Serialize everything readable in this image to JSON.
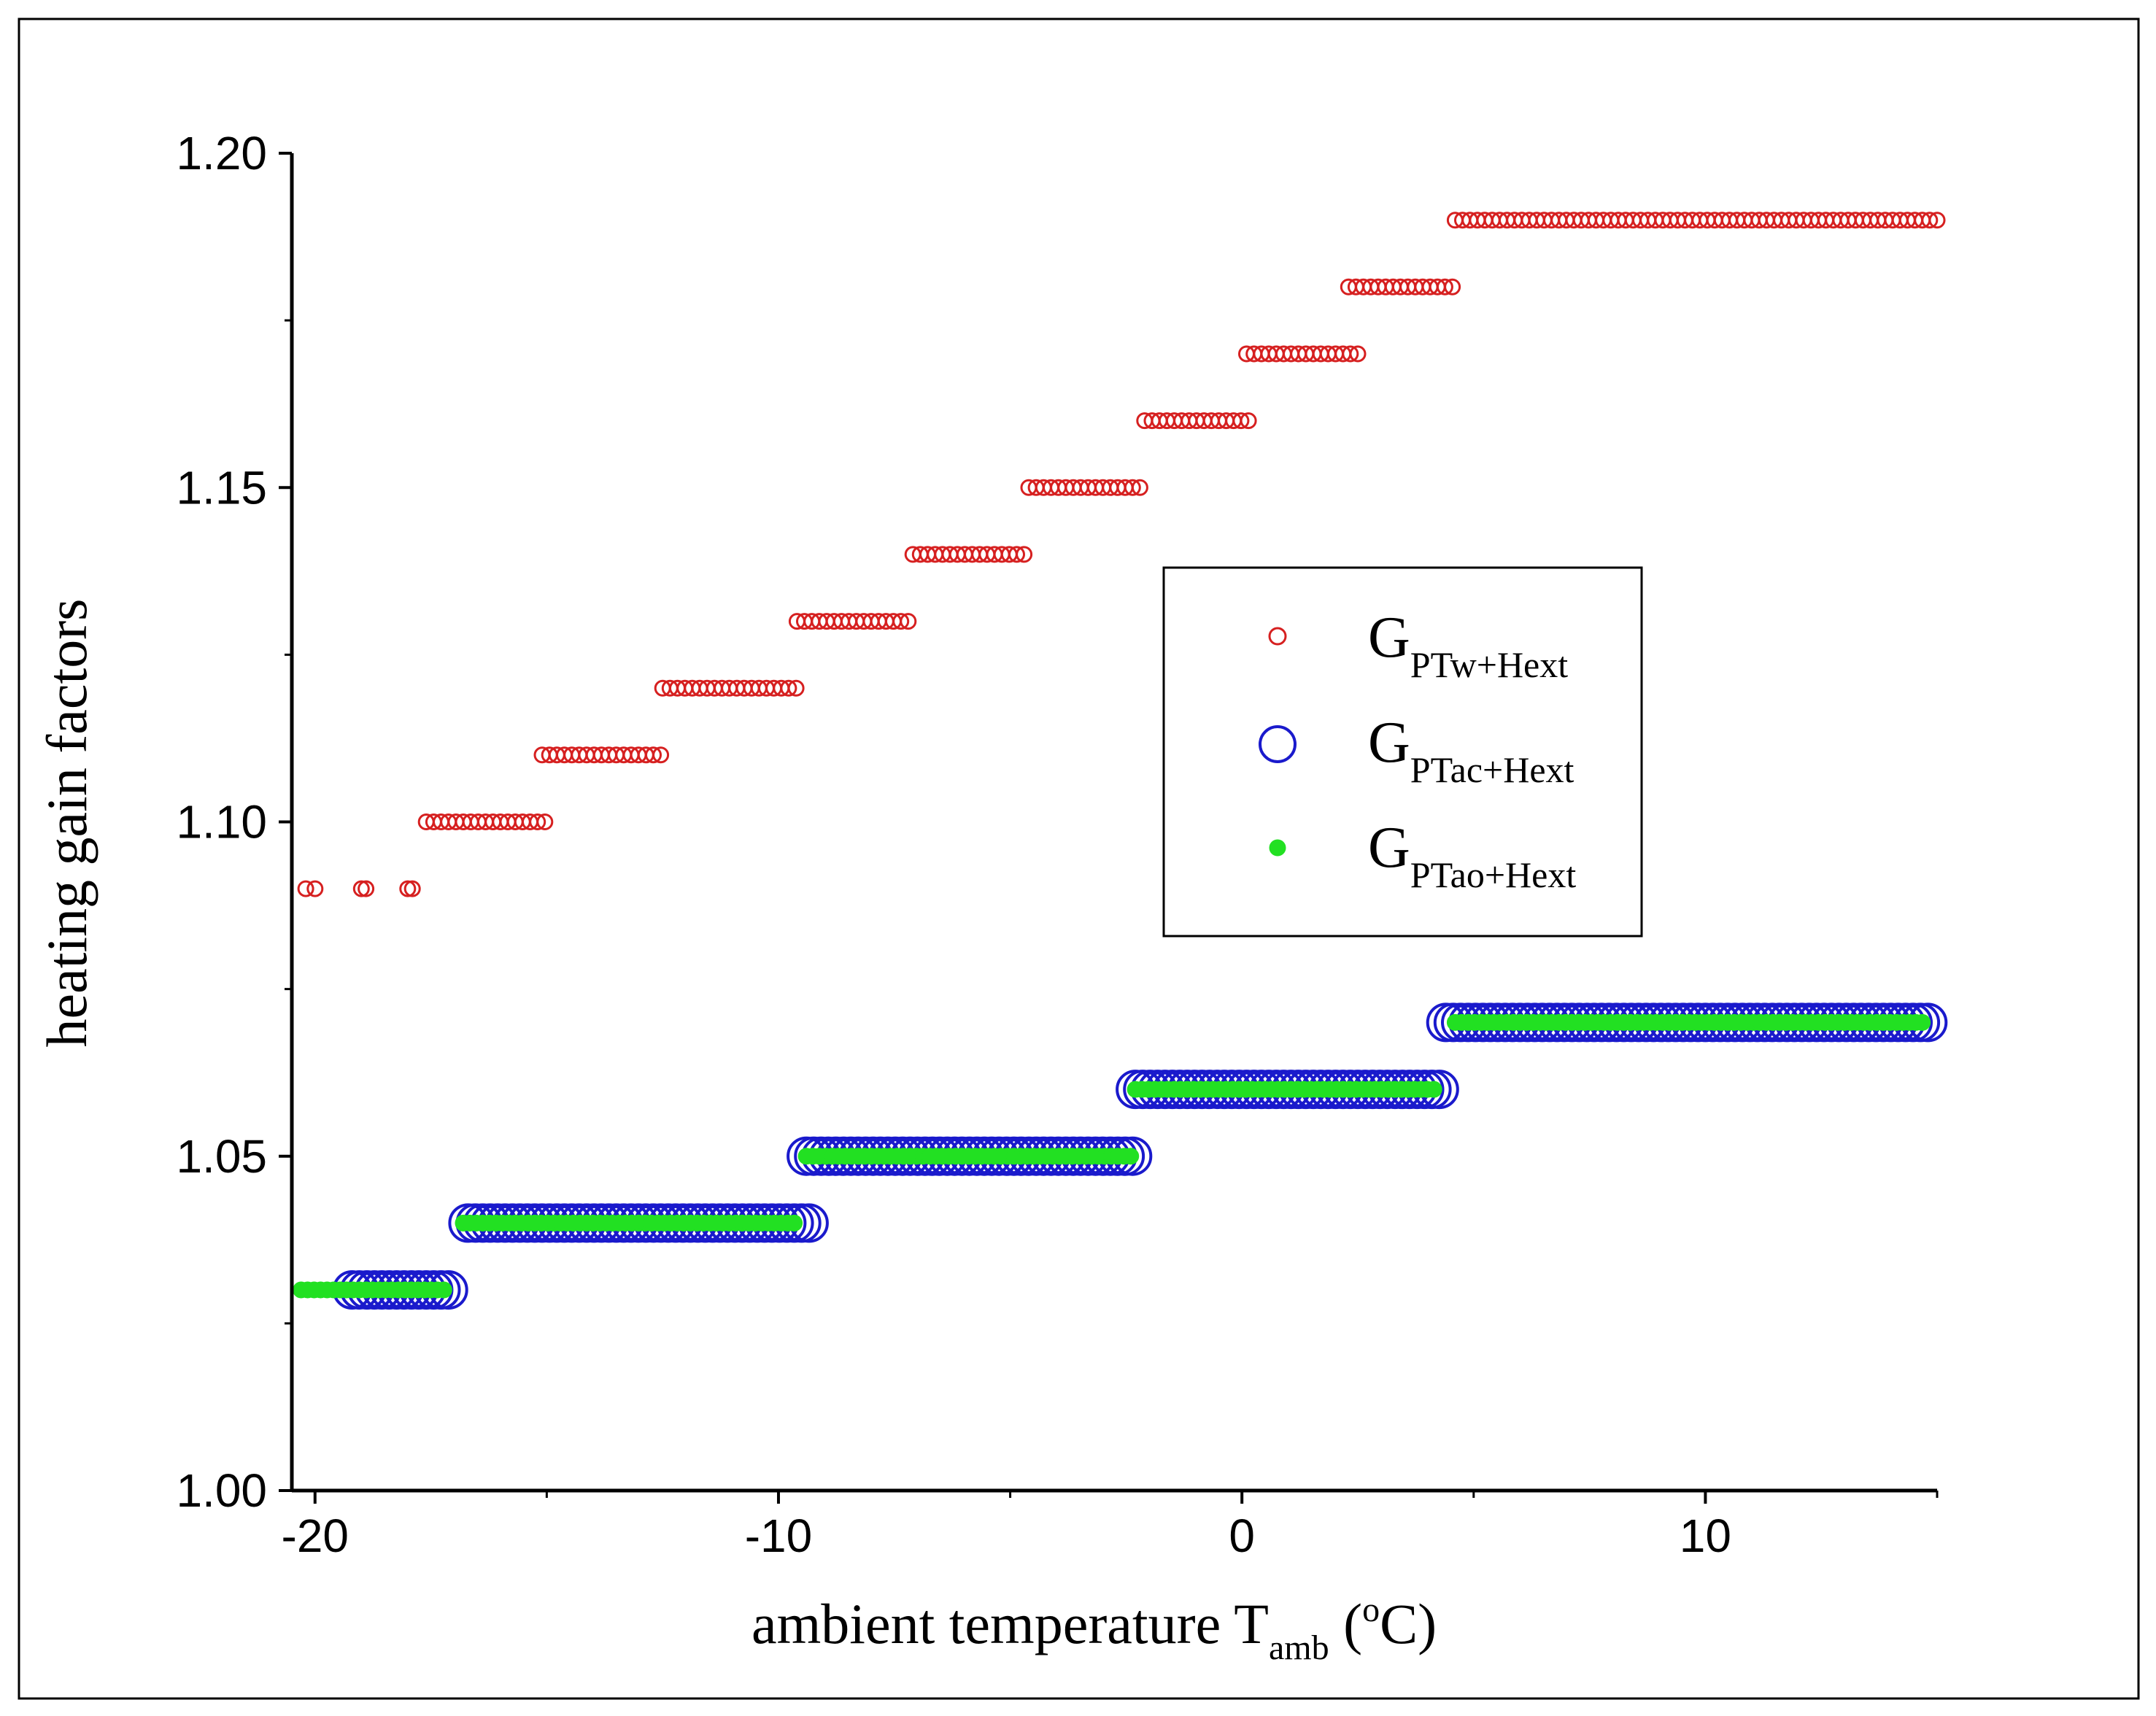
{
  "chart_data": {
    "type": "scatter",
    "xlabel": {
      "main": "ambient temperature T",
      "sub": "amb",
      "unit_open": " (",
      "unit_sup": "o",
      "unit_close": "C)"
    },
    "ylabel": "heating gain factors",
    "xlim": [
      -20.5,
      15
    ],
    "ylim": [
      1.0,
      1.2
    ],
    "x_ticks": [
      -20,
      -10,
      0,
      10
    ],
    "x_tick_labels": [
      "-20",
      "-10",
      "0",
      "10"
    ],
    "y_ticks": [
      1.0,
      1.05,
      1.1,
      1.15,
      1.2
    ],
    "y_tick_labels": [
      "1.00",
      "1.05",
      "1.10",
      "1.15",
      "1.20"
    ],
    "legend_position": "center-right",
    "series": [
      {
        "name": "G",
        "name_sub": "PTw+Hext",
        "marker": "open-circle-small",
        "color": "#d62020",
        "segments": [
          {
            "y": 1.09,
            "x_points": [
              -20.2,
              -20.0,
              -19.0,
              -18.9,
              -18.0,
              -17.9
            ]
          },
          {
            "y": 1.1,
            "x_from": -17.6,
            "x_to": -15.0
          },
          {
            "y": 1.11,
            "x_from": -15.1,
            "x_to": -12.5
          },
          {
            "y": 1.12,
            "x_from": -12.5,
            "x_to": -9.6
          },
          {
            "y": 1.13,
            "x_from": -9.6,
            "x_to": -7.1
          },
          {
            "y": 1.14,
            "x_from": -7.1,
            "x_to": -4.6
          },
          {
            "y": 1.15,
            "x_from": -4.6,
            "x_to": -2.1
          },
          {
            "y": 1.16,
            "x_from": -2.1,
            "x_to": 0.2
          },
          {
            "y": 1.17,
            "x_from": 0.1,
            "x_to": 2.5
          },
          {
            "y": 1.18,
            "x_from": 2.3,
            "x_to": 4.6
          },
          {
            "y": 1.19,
            "x_from": 4.6,
            "x_to": 15.0
          }
        ]
      },
      {
        "name": "G",
        "name_sub": "PTac+Hext",
        "marker": "open-circle-large",
        "color": "#1a1acc",
        "segments": [
          {
            "y": 1.03,
            "x_from": -19.2,
            "x_to": -17.0
          },
          {
            "y": 1.04,
            "x_from": -16.7,
            "x_to": -9.3
          },
          {
            "y": 1.05,
            "x_from": -9.4,
            "x_to": -2.3
          },
          {
            "y": 1.06,
            "x_from": -2.3,
            "x_to": 4.3
          },
          {
            "y": 1.07,
            "x_from": 4.4,
            "x_to": 14.9
          }
        ]
      },
      {
        "name": "G",
        "name_sub": "PTao+Hext",
        "marker": "filled-circle",
        "color": "#22e022",
        "segments": [
          {
            "y": 1.03,
            "x_from": -20.3,
            "x_to": -17.2
          },
          {
            "y": 1.04,
            "x_from": -16.8,
            "x_to": -9.6
          },
          {
            "y": 1.05,
            "x_from": -9.4,
            "x_to": -2.3
          },
          {
            "y": 1.06,
            "x_from": -2.3,
            "x_to": 4.2
          },
          {
            "y": 1.07,
            "x_from": 4.6,
            "x_to": 14.8
          }
        ]
      }
    ]
  }
}
